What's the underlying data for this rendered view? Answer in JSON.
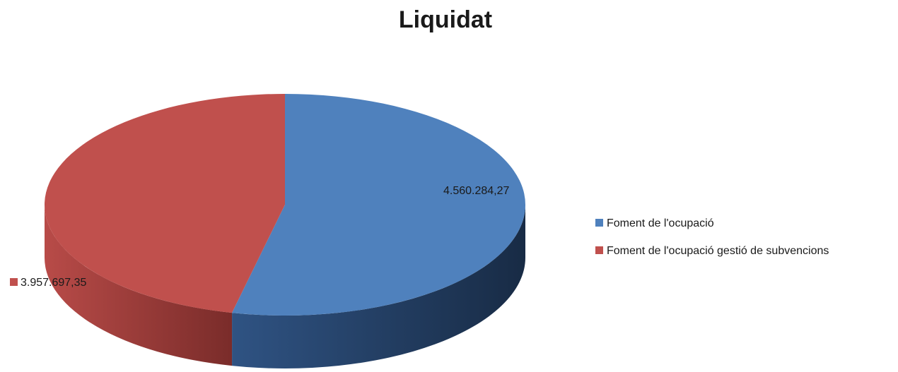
{
  "chart_data": {
    "type": "pie",
    "title": "Liquidat",
    "categories": [
      "Foment de l'ocupació",
      "Foment de l'ocupació gestió de subvencions"
    ],
    "values": [
      4560284.27,
      3957697.35
    ],
    "value_labels": [
      "4.560.284,27",
      "3.957.697,35"
    ],
    "colors": [
      "#4f81bd",
      "#c0504d"
    ],
    "legend": "right"
  }
}
